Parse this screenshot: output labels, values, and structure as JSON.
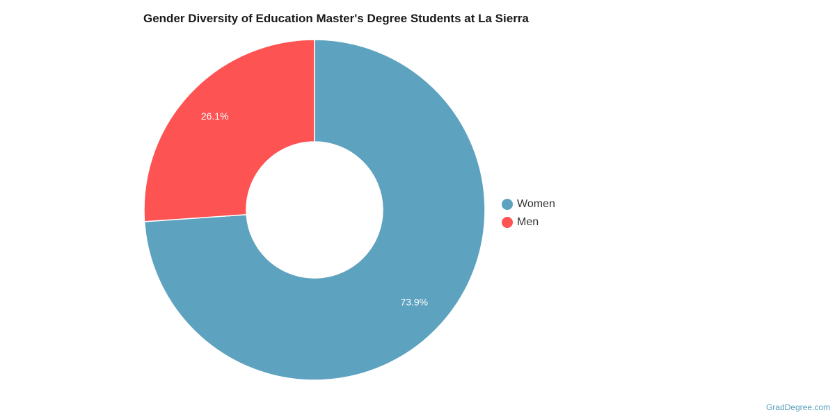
{
  "chart_data": {
    "type": "pie",
    "title": "Gender Diversity of Education Master's Degree Students at La Sierra",
    "categories": [
      "Women",
      "Men"
    ],
    "values": [
      73.9,
      26.1
    ],
    "data_labels": [
      "73.9%",
      "26.1%"
    ],
    "colors": [
      "#5da2bf",
      "#fe5353"
    ],
    "donut": true,
    "legend_position": "right"
  },
  "credit": "GradDegree.com"
}
